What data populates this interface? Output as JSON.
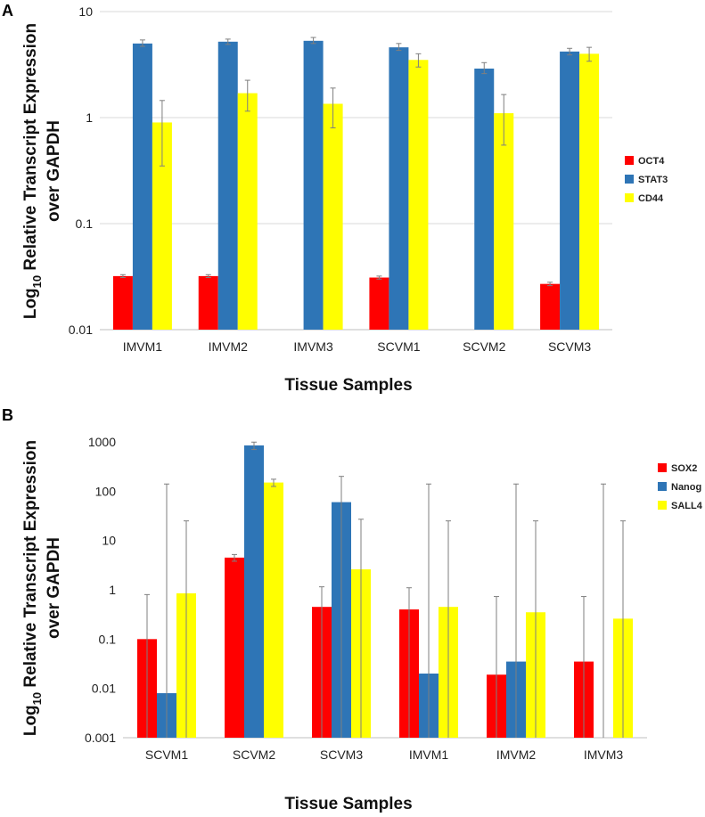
{
  "chart_data": [
    {
      "panel_label": "A",
      "type": "bar",
      "yscale": "log",
      "ylim": [
        0.01,
        10
      ],
      "ytick_labels": [
        "10",
        "1",
        "0.1",
        "0.01"
      ],
      "ytick_values": [
        10,
        1,
        0.1,
        0.01
      ],
      "ylabel_prefix": "Log",
      "ylabel_sub": "10",
      "ylabel_rest": " Relative Transcript Expression",
      "ylabel_line2": "over GAPDH",
      "xlabel": "Tissue Samples",
      "grid": true,
      "legend_position": "right",
      "categories": [
        "IMVM1",
        "IMVM2",
        "IMVM3",
        "SCVM1",
        "SCVM2",
        "SCVM3"
      ],
      "series": [
        {
          "name": "OCT4",
          "color": "#ff0000",
          "values": [
            0.032,
            0.032,
            null,
            0.031,
            null,
            0.027
          ],
          "err_low": [
            0.031,
            0.031,
            null,
            0.03,
            null,
            0.026
          ],
          "err_high": [
            0.033,
            0.033,
            null,
            0.032,
            null,
            0.028
          ]
        },
        {
          "name": "STAT3",
          "color": "#2e75b6",
          "values": [
            5.0,
            5.2,
            5.3,
            4.6,
            2.9,
            4.2
          ],
          "err_low": [
            4.7,
            4.9,
            5.0,
            4.3,
            2.6,
            3.9
          ],
          "err_high": [
            5.4,
            5.5,
            5.7,
            5.0,
            3.3,
            4.5
          ]
        },
        {
          "name": "CD44",
          "color": "#ffff00",
          "values": [
            0.9,
            1.7,
            1.35,
            3.5,
            1.1,
            4.0
          ],
          "err_low": [
            0.35,
            1.15,
            0.8,
            3.0,
            0.55,
            3.4
          ],
          "err_high": [
            1.45,
            2.25,
            1.9,
            4.0,
            1.65,
            4.6
          ]
        }
      ]
    },
    {
      "panel_label": "B",
      "type": "bar",
      "yscale": "log",
      "ylim": [
        0.001,
        1000
      ],
      "ytick_labels": [
        "1000",
        "100",
        "10",
        "1",
        "0.1",
        "0.01",
        "0.001"
      ],
      "ytick_values": [
        1000,
        100,
        10,
        1,
        0.1,
        0.01,
        0.001
      ],
      "ylabel_prefix": "Log",
      "ylabel_sub": "10",
      "ylabel_rest": " Relative Transcript Expression",
      "ylabel_line2": "over GAPDH",
      "xlabel": "Tissue Samples",
      "grid": false,
      "legend_position": "right",
      "categories": [
        "SCVM1",
        "SCVM2",
        "SCVM3",
        "IMVM1",
        "IMVM2",
        "IMVM3"
      ],
      "series": [
        {
          "name": "SOX2",
          "color": "#ff0000",
          "values": [
            0.1,
            4.5,
            0.45,
            0.4,
            0.019,
            0.035
          ],
          "err_low": [
            null,
            3.8,
            null,
            null,
            null,
            null
          ],
          "err_high": [
            0.8,
            5.2,
            1.15,
            1.1,
            0.73,
            0.73
          ]
        },
        {
          "name": "Nanog",
          "color": "#2e75b6",
          "values": [
            0.008,
            850,
            60,
            0.02,
            0.035,
            null
          ],
          "err_low": [
            null,
            700,
            null,
            null,
            null,
            null
          ],
          "err_high": [
            140,
            990,
            200,
            140,
            140,
            140
          ]
        },
        {
          "name": "SALL4",
          "color": "#ffff00",
          "values": [
            0.85,
            150,
            2.6,
            0.45,
            0.35,
            0.26
          ],
          "err_low": [
            null,
            125,
            null,
            null,
            null,
            null
          ],
          "err_high": [
            25,
            175,
            27,
            25,
            25,
            25
          ]
        }
      ]
    }
  ]
}
